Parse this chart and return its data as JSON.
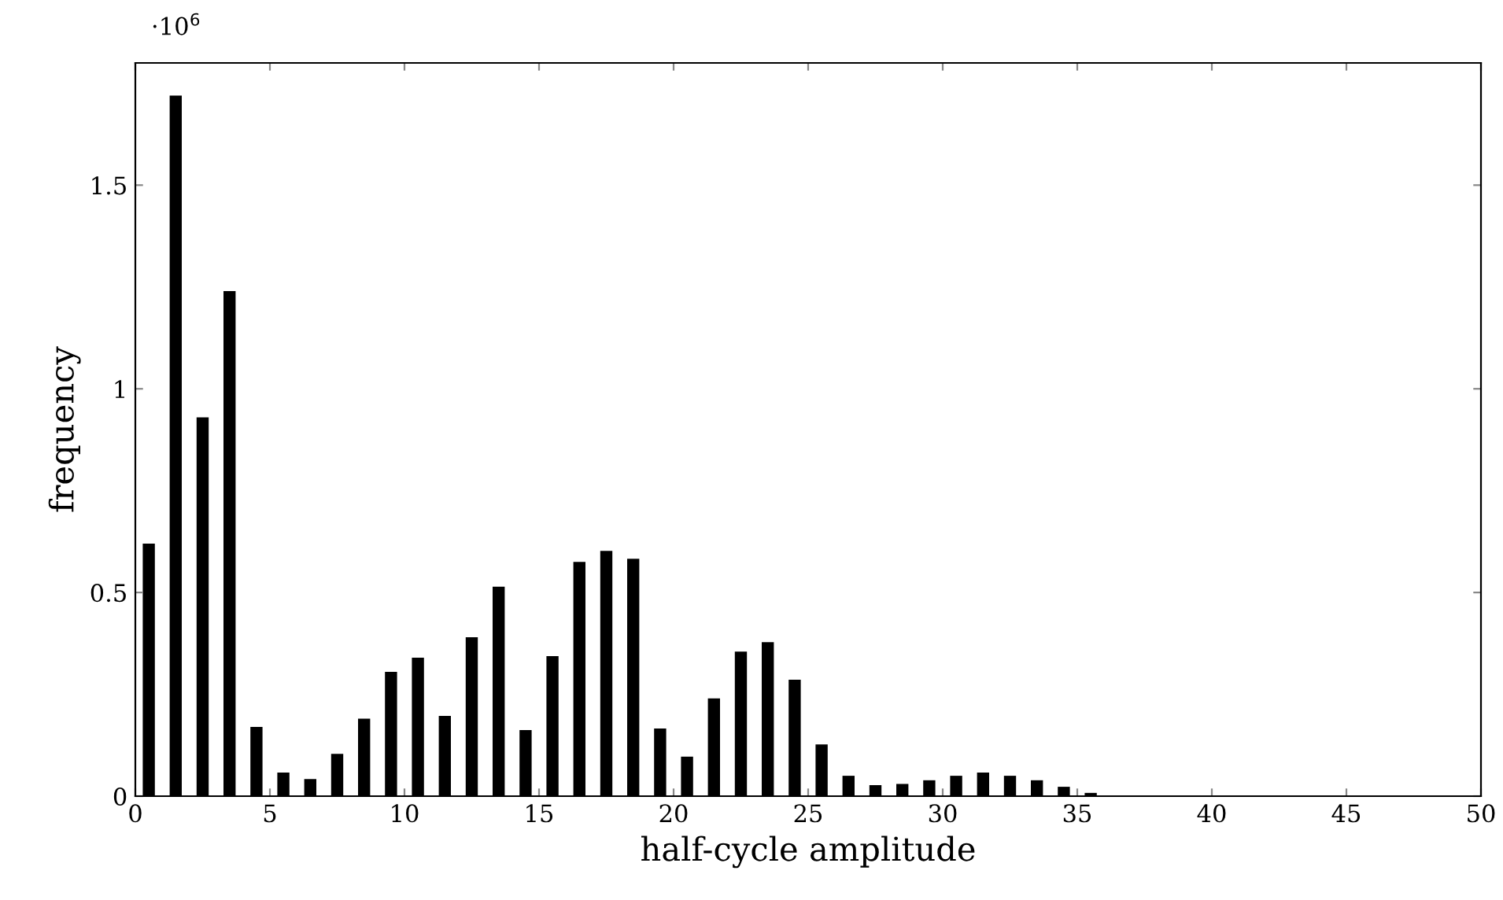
{
  "chart_data": {
    "type": "bar",
    "xlabel": "half-cycle amplitude",
    "ylabel": "frequency",
    "annotations": [
      "·10$^{6}$"
    ],
    "x": [
      0.5,
      1.5,
      2.5,
      3.5,
      4.5,
      5.5,
      6.5,
      7.5,
      8.5,
      9.5,
      10.5,
      11.5,
      12.5,
      13.5,
      14.5,
      15.5,
      16.5,
      17.5,
      18.5,
      19.5,
      20.5,
      21.5,
      22.5,
      23.5,
      24.5,
      25.5,
      26.5,
      27.5,
      28.5,
      29.5,
      30.5,
      31.5,
      32.5,
      33.5,
      34.5,
      35.5,
      36.5,
      37.5,
      38.5,
      39.5,
      40.5,
      41.5,
      42.5,
      43.5,
      44.5,
      45.5,
      46.5,
      47.5,
      48.5,
      49.5
    ],
    "series": [
      {
        "color": "#000000",
        "values": [
          0.62,
          1.72,
          0.93,
          1.24,
          0.17,
          0.058,
          0.042,
          0.104,
          0.19,
          0.305,
          0.34,
          0.197,
          0.39,
          0.514,
          0.162,
          0.344,
          0.575,
          0.602,
          0.583,
          0.166,
          0.097,
          0.24,
          0.355,
          0.378,
          0.286,
          0.127,
          0.05,
          0.027,
          0.03,
          0.039,
          0.05,
          0.058,
          0.05,
          0.039,
          0.023,
          0.008,
          null,
          null,
          null,
          null,
          null,
          null,
          0,
          0,
          0,
          0,
          0,
          0,
          0,
          0
        ]
      }
    ],
    "xlim": [
      0,
      50
    ],
    "xticks": [
      0,
      5,
      10,
      15,
      20,
      25,
      30,
      35,
      40,
      45,
      50
    ],
    "ylim": [
      0,
      1.8
    ],
    "yticks": [
      0,
      0.5,
      1,
      1.5
    ],
    "grid": false,
    "legend": false
  }
}
